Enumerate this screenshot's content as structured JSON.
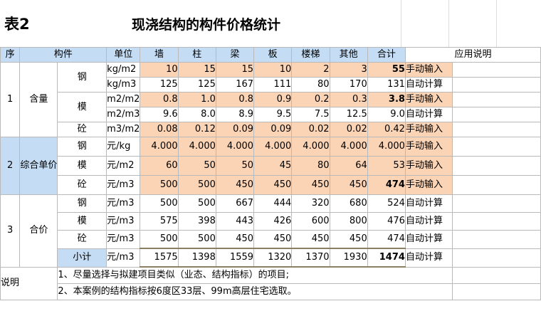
{
  "title": {
    "table_no": "表2",
    "name": "现浇结构的构件价格统计"
  },
  "header": {
    "seq": "序",
    "component": "构件",
    "unit": "单位",
    "cols": [
      "墙",
      "柱",
      "梁",
      "板",
      "楼梯",
      "其他",
      "合计"
    ],
    "app": "应用说明"
  },
  "g1": {
    "seq": "1",
    "label": "含量",
    "rows": [
      {
        "comp": "钢",
        "unit": "kg/m2",
        "vals": [
          "10",
          "15",
          "15",
          "10",
          "2",
          "3",
          "55"
        ],
        "note": "手动输入"
      },
      {
        "comp": "",
        "unit": "kg/m3",
        "vals": [
          "125",
          "125",
          "167",
          "111",
          "80",
          "170",
          "131"
        ],
        "note": "自动计算"
      },
      {
        "comp": "模",
        "unit": "m2/m2",
        "vals": [
          "0.8",
          "1.0",
          "0.8",
          "0.9",
          "0.2",
          "0.3",
          "3.8"
        ],
        "note": "手动输入"
      },
      {
        "comp": "",
        "unit": "m2/m3",
        "vals": [
          "9.6",
          "8.0",
          "8.9",
          "9.5",
          "7.5",
          "12.5",
          "9.0"
        ],
        "note": "自动计算"
      },
      {
        "comp": "砼",
        "unit": "m3/m2",
        "vals": [
          "0.08",
          "0.12",
          "0.09",
          "0.09",
          "0.02",
          "0.02",
          "0.42"
        ],
        "note": "手动输入"
      }
    ]
  },
  "g2": {
    "seq": "2",
    "label": "综合单价",
    "rows": [
      {
        "comp": "钢",
        "unit": "元/kg",
        "vals": [
          "4.000",
          "4.000",
          "4.000",
          "4.000",
          "4.000",
          "4.000",
          "4.000"
        ],
        "note": "手动输入"
      },
      {
        "comp": "模",
        "unit": "元/m2",
        "vals": [
          "60",
          "50",
          "50",
          "45",
          "80",
          "64",
          "53"
        ],
        "note": "手动输入"
      },
      {
        "comp": "砼",
        "unit": "元/m3",
        "vals": [
          "500",
          "500",
          "450",
          "450",
          "450",
          "450",
          "474"
        ],
        "note": "手动输入"
      }
    ]
  },
  "g3": {
    "seq": "3",
    "label": "合价",
    "rows": [
      {
        "comp": "钢",
        "unit": "元/m3",
        "vals": [
          "500",
          "500",
          "667",
          "444",
          "320",
          "680",
          "524"
        ],
        "note": "自动计算"
      },
      {
        "comp": "模",
        "unit": "元/m3",
        "vals": [
          "575",
          "398",
          "443",
          "426",
          "600",
          "800",
          "476"
        ],
        "note": "自动计算"
      },
      {
        "comp": "砼",
        "unit": "元/m3",
        "vals": [
          "500",
          "500",
          "450",
          "450",
          "450",
          "450",
          "474"
        ],
        "note": "自动计算"
      },
      {
        "comp": "小计",
        "unit": "元/m3",
        "vals": [
          "1575",
          "1398",
          "1559",
          "1320",
          "1370",
          "1930",
          "1474"
        ],
        "note": "自动计算"
      }
    ]
  },
  "explain": {
    "label": "说明",
    "lines": [
      "1、尽量选择与拟建项目类似（业态、结构指标）的项目;",
      "2、本案例的结构指标按6度区33层、99m高层住宅选取。"
    ]
  },
  "colors": {
    "header_blue": "#c4dcf4",
    "input_orange": "#fbd3b5",
    "grid": "#b9b9b9"
  }
}
